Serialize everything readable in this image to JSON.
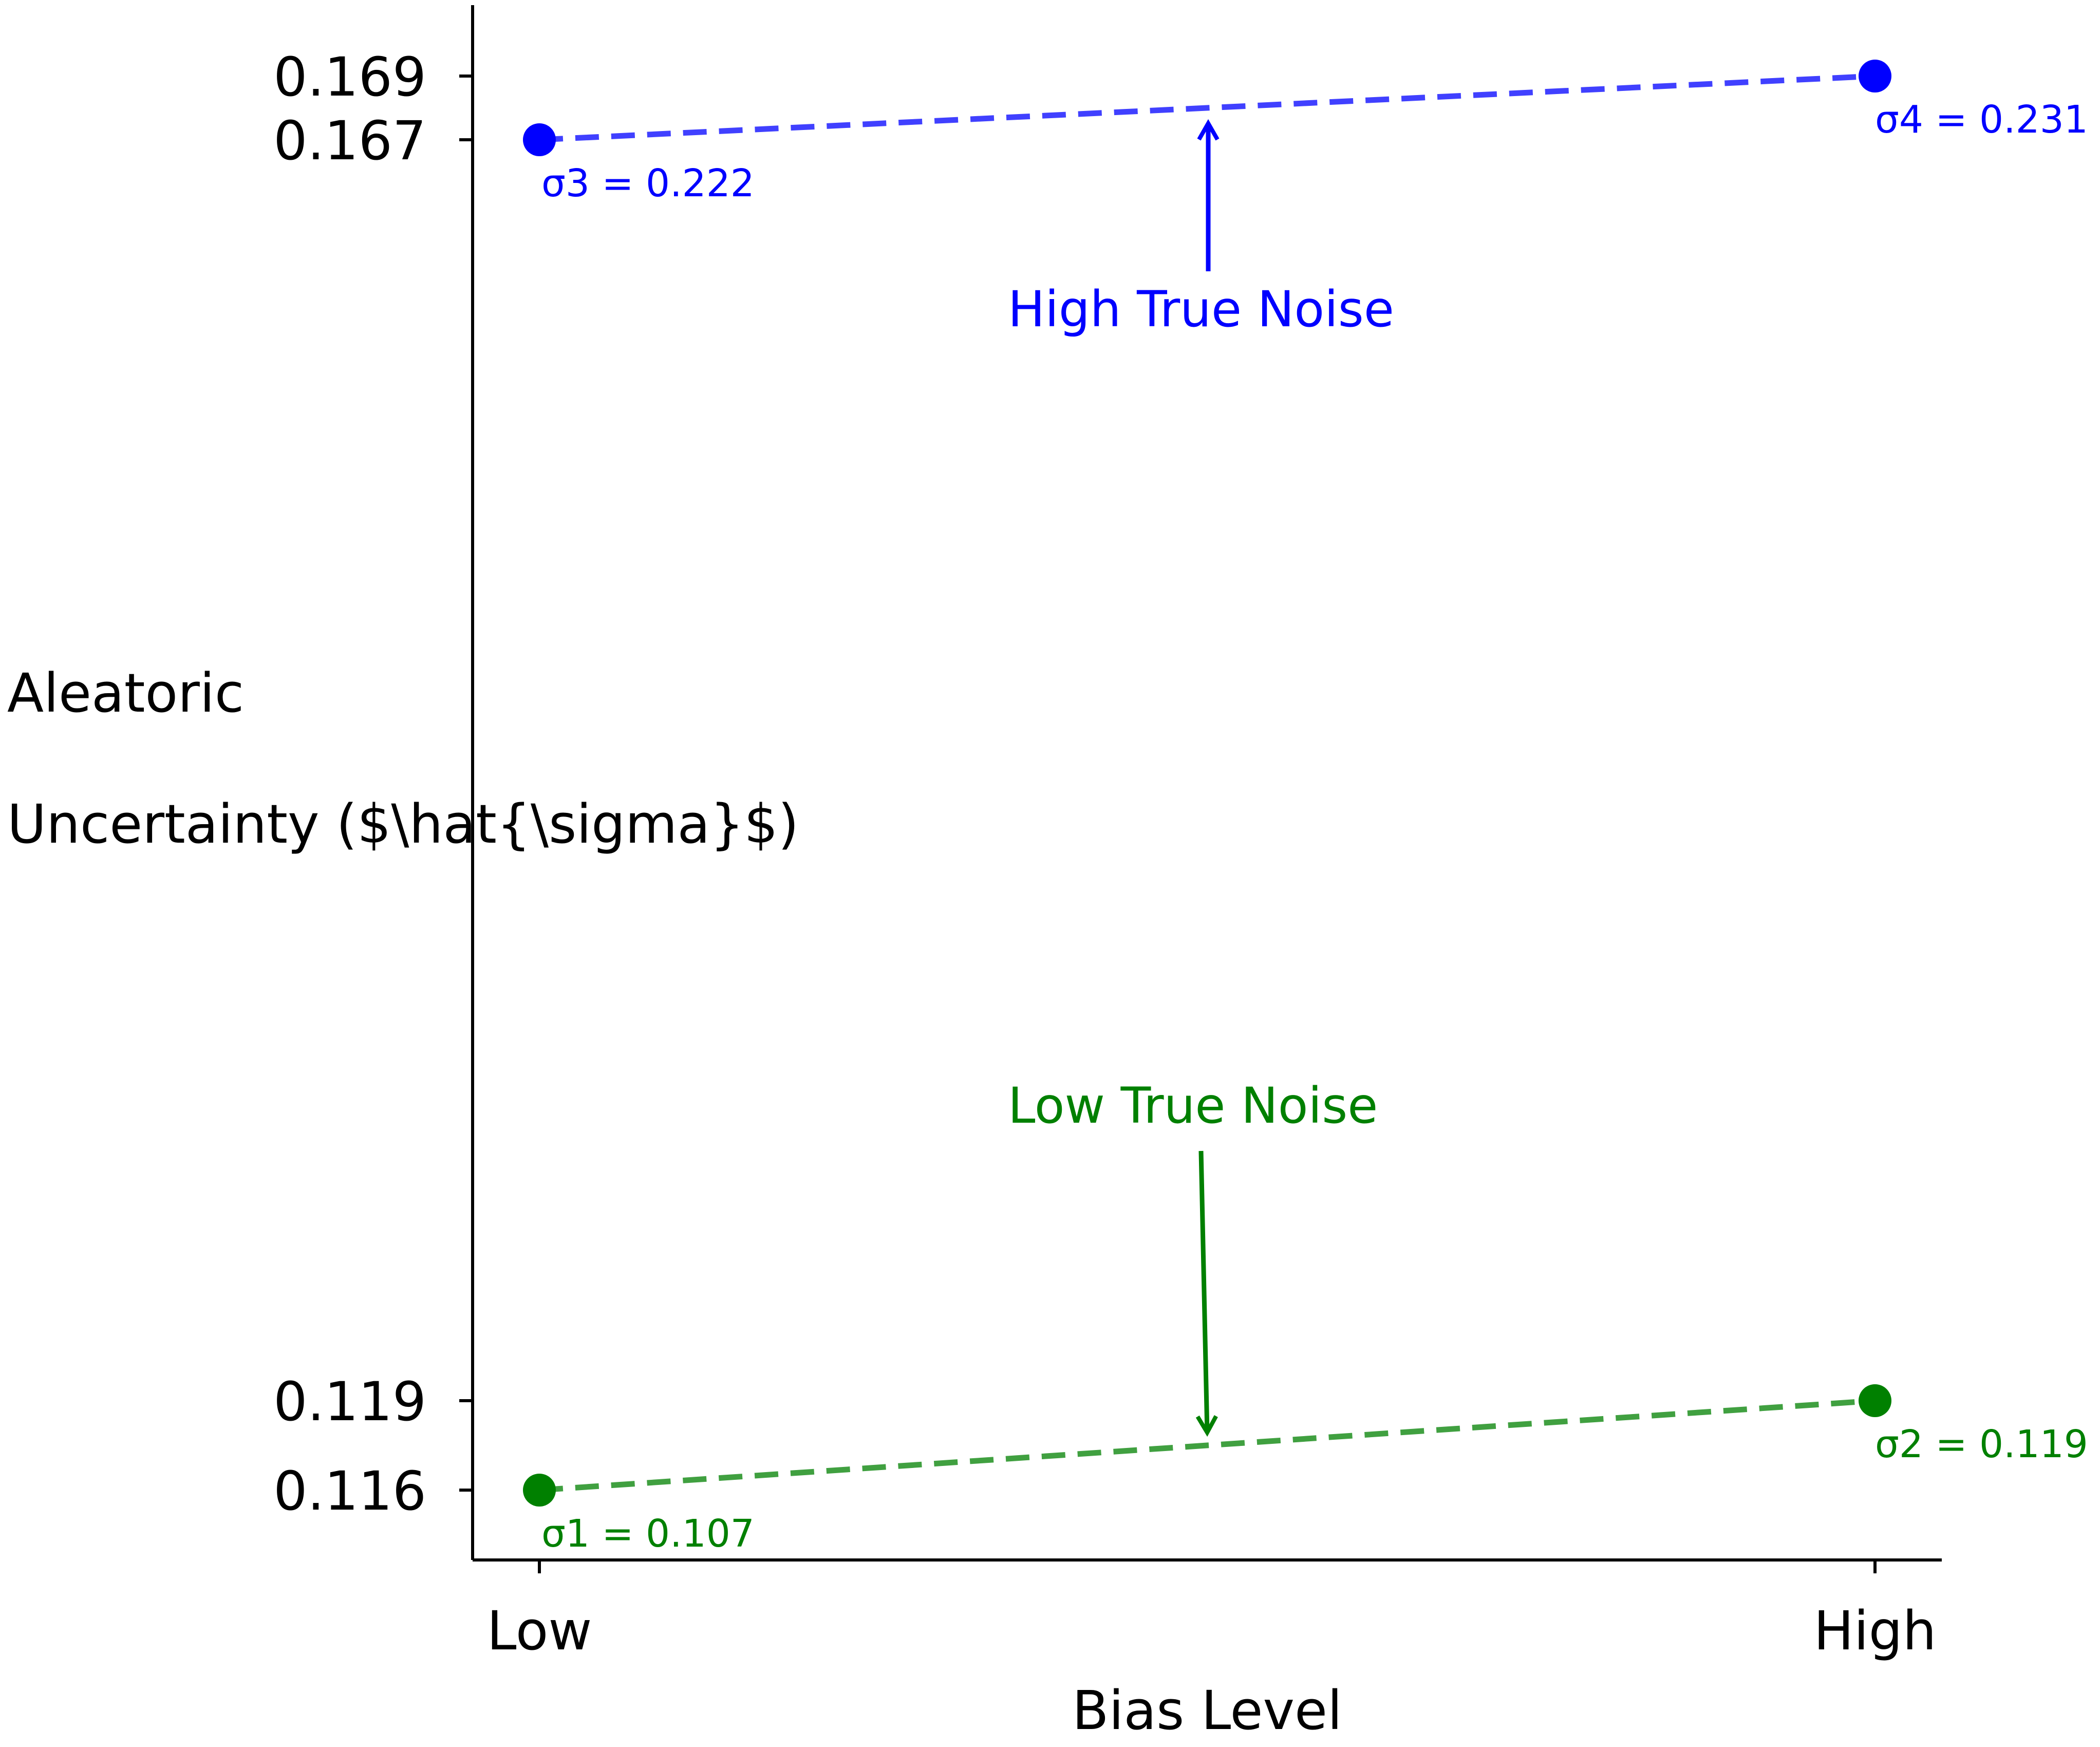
{
  "chart_data": {
    "type": "line",
    "xlabel": "Bias Level",
    "ylabel_lines": [
      "Aleatoric",
      "Uncertainty ($\\hat{\\sigma}$)"
    ],
    "categories": [
      "Low",
      "High"
    ],
    "ylim": [
      0.114,
      0.1705
    ],
    "yticks": [
      "0.116",
      "0.119",
      "0.167",
      "0.169"
    ],
    "ytick_values": [
      0.116,
      0.119,
      0.167,
      0.169
    ],
    "grid": false,
    "series": [
      {
        "color": "#008000",
        "line_style": "dashed",
        "values": [
          0.116,
          0.119
        ],
        "point_labels": [
          "σ1 = 0.107",
          "σ2 = 0.119"
        ],
        "annotation": "Low True Noise"
      },
      {
        "color": "#0000ff",
        "line_style": "dashed",
        "values": [
          0.167,
          0.169
        ],
        "point_labels": [
          "σ3 = 0.222",
          "σ4 = 0.231"
        ],
        "annotation": "High True Noise"
      }
    ]
  }
}
